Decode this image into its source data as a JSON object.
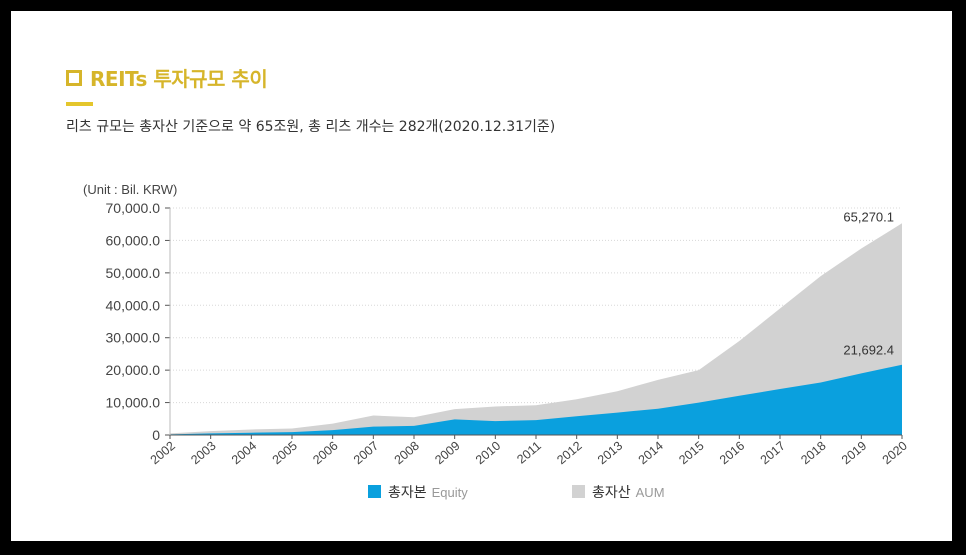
{
  "header": {
    "title": "REITs 투자규모 추이",
    "subtitle": "리츠 규모는 총자산 기준으로 약 65조원, 총 리츠 개수는 282개(2020.12.31기준)"
  },
  "colors": {
    "accent": "#d6b52a",
    "equity": "#0aa0de",
    "aum": "#d2d2d2",
    "frame": "#000000"
  },
  "chart_data": {
    "type": "area",
    "unit_label": "(Unit : Bil. KRW)",
    "x": [
      "2002",
      "2003",
      "2004",
      "2005",
      "2006",
      "2007",
      "2008",
      "2009",
      "2010",
      "2011",
      "2012",
      "2013",
      "2014",
      "2015",
      "2016",
      "2017",
      "2018",
      "2019",
      "2020"
    ],
    "ylim": [
      0,
      70000
    ],
    "y_ticks": [
      "0",
      "10,000.0",
      "20,000.0",
      "30,000.0",
      "40,000.0",
      "50,000.0",
      "60,000.0",
      "70,000.0"
    ],
    "series": [
      {
        "name": "총자산",
        "name_en": "AUM",
        "values": [
          500,
          1200,
          1700,
          2000,
          3500,
          6000,
          5500,
          8000,
          8800,
          9200,
          11000,
          13500,
          17000,
          20000,
          29000,
          39000,
          49000,
          57500,
          65270.1
        ]
      },
      {
        "name": "총자본",
        "name_en": "Equity",
        "values": [
          200,
          500,
          700,
          900,
          1500,
          2600,
          2800,
          4800,
          4300,
          4600,
          5800,
          6900,
          8100,
          10000,
          12100,
          14200,
          16200,
          19000,
          21692.4
        ]
      }
    ],
    "data_labels": [
      {
        "series": "총자산",
        "x": "2020",
        "text": "65,270.1"
      },
      {
        "series": "총자본",
        "x": "2020",
        "text": "21,692.4"
      }
    ],
    "legend": [
      {
        "label": "총자본",
        "sub": "Equity"
      },
      {
        "label": "총자산",
        "sub": "AUM"
      }
    ],
    "grid": true,
    "legend_position": "bottom"
  }
}
